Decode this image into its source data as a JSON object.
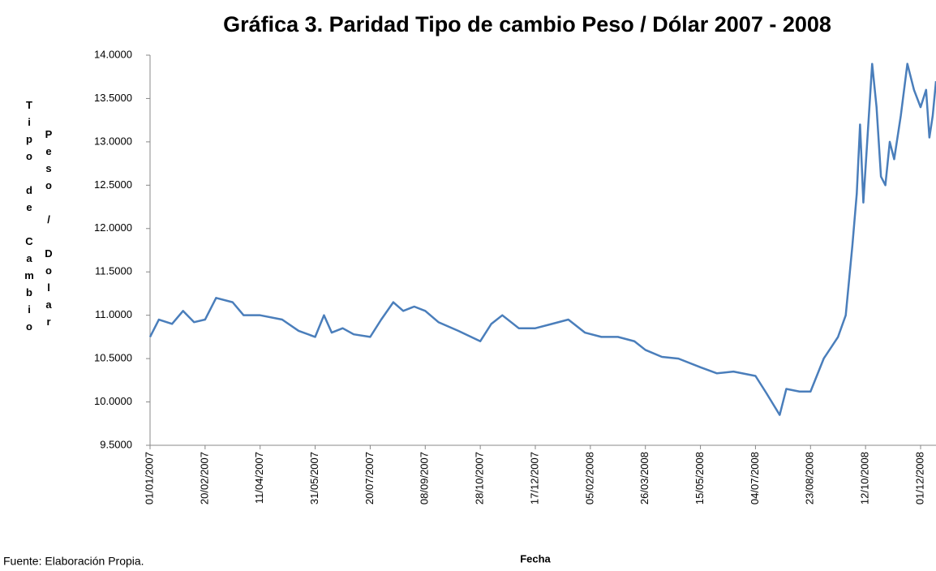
{
  "chart_data": {
    "type": "line",
    "title": "Gráfica 3. Paridad Tipo de cambio Peso / Dólar 2007 - 2008",
    "x_label": "Fecha",
    "y_label": [
      "Tipo de Cambio",
      "Peso / Dolar"
    ],
    "source": "Fuente: Elaboración Propia.",
    "color": "#4a7ebb",
    "x": [
      "01/01/2007",
      "09/01/2007",
      "21/01/2007",
      "31/01/2007",
      "10/02/2007",
      "20/02/2007",
      "02/03/2007",
      "17/03/2007",
      "27/03/2007",
      "11/04/2007",
      "01/05/2007",
      "16/05/2007",
      "31/05/2007",
      "08/06/2007",
      "15/06/2007",
      "25/06/2007",
      "05/07/2007",
      "20/07/2007",
      "30/07/2007",
      "10/08/2007",
      "19/08/2007",
      "29/08/2007",
      "08/09/2007",
      "20/09/2007",
      "08/10/2007",
      "28/10/2007",
      "07/11/2007",
      "17/11/2007",
      "02/12/2007",
      "17/12/2007",
      "01/01/2008",
      "16/01/2008",
      "31/01/2008",
      "15/02/2008",
      "01/03/2008",
      "16/03/2008",
      "26/03/2008",
      "10/04/2008",
      "25/04/2008",
      "15/05/2008",
      "30/05/2008",
      "14/06/2008",
      "04/07/2008",
      "14/07/2008",
      "26/07/2008",
      "01/08/2008",
      "13/08/2008",
      "23/08/2008",
      "04/09/2008",
      "17/09/2008",
      "24/09/2008",
      "30/09/2008",
      "04/10/2008",
      "07/10/2008",
      "10/10/2008",
      "14/10/2008",
      "18/10/2008",
      "22/10/2008",
      "26/10/2008",
      "30/10/2008",
      "03/11/2008",
      "07/11/2008",
      "13/11/2008",
      "19/11/2008",
      "25/11/2008",
      "01/12/2008",
      "06/12/2008",
      "09/12/2008",
      "12/12/2008",
      "15/12/2008"
    ],
    "values": [
      10.75,
      10.95,
      10.9,
      11.05,
      10.92,
      10.95,
      11.2,
      11.15,
      11.0,
      11.0,
      10.95,
      10.82,
      10.75,
      11.0,
      10.8,
      10.85,
      10.78,
      10.75,
      10.95,
      11.15,
      11.05,
      11.1,
      11.05,
      10.92,
      10.82,
      10.7,
      10.9,
      11.0,
      10.85,
      10.85,
      10.9,
      10.95,
      10.8,
      10.75,
      10.75,
      10.7,
      10.6,
      10.52,
      10.5,
      10.4,
      10.33,
      10.35,
      10.3,
      10.1,
      9.85,
      10.15,
      10.12,
      10.12,
      10.5,
      10.75,
      11.0,
      11.8,
      12.4,
      13.2,
      12.3,
      13.1,
      13.9,
      13.4,
      12.6,
      12.5,
      13.0,
      12.8,
      13.3,
      13.9,
      13.6,
      13.4,
      13.6,
      13.05,
      13.3,
      13.7
    ],
    "xlim": [
      "01/01/2007",
      "15/12/2008"
    ],
    "xticks": [
      "01/01/2007",
      "20/02/2007",
      "11/04/2007",
      "31/05/2007",
      "20/07/2007",
      "08/09/2007",
      "28/10/2007",
      "17/12/2007",
      "05/02/2008",
      "26/03/2008",
      "15/05/2008",
      "04/07/2008",
      "23/08/2008",
      "12/10/2008",
      "01/12/2008"
    ],
    "ylim": [
      9.5,
      14
    ],
    "yticks": [
      {
        "value": 9.5,
        "label": "9.5000"
      },
      {
        "value": 10,
        "label": "10.0000"
      },
      {
        "value": 10.5,
        "label": "10.5000"
      },
      {
        "value": 11,
        "label": "11.0000"
      },
      {
        "value": 11.5,
        "label": "11.5000"
      },
      {
        "value": 12,
        "label": "12.0000"
      },
      {
        "value": 12.5,
        "label": "12.5000"
      },
      {
        "value": 13,
        "label": "13.0000"
      },
      {
        "value": 13.5,
        "label": "13.5000"
      },
      {
        "value": 14,
        "label": "14.0000"
      }
    ],
    "grid": false
  }
}
